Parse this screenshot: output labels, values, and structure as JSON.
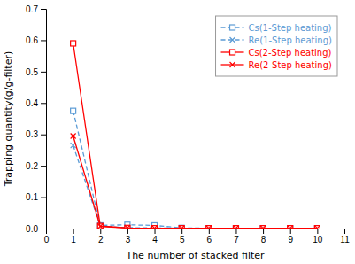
{
  "chart_data": {
    "type": "line",
    "x": [
      1,
      2,
      3,
      4,
      5,
      6,
      7,
      8,
      9,
      10
    ],
    "series": [
      {
        "name": "Cs(1-Step heating)",
        "color": "#5B9BD5",
        "marker": "square",
        "line_style": "dashed",
        "values": [
          0.375,
          0.01,
          0.012,
          0.01,
          0.002,
          0.001,
          0.001,
          0.001,
          0.001,
          0.001
        ]
      },
      {
        "name": "Re(1-Step heating)",
        "color": "#5B9BD5",
        "marker": "x",
        "line_style": "dashed",
        "values": [
          0.265,
          0.008,
          0.003,
          0.002,
          0.001,
          0.001,
          0.001,
          0.001,
          0.001,
          0.001
        ]
      },
      {
        "name": "Cs(2-Step heating)",
        "color": "#FF0000",
        "marker": "square",
        "line_style": "solid",
        "values": [
          0.59,
          0.008,
          0.002,
          0.001,
          0.001,
          0.001,
          0.001,
          0.001,
          0.001,
          0.001
        ]
      },
      {
        "name": "Re(2-Step heating)",
        "color": "#FF0000",
        "marker": "x",
        "line_style": "solid",
        "values": [
          0.295,
          0.007,
          0.002,
          0.001,
          0.001,
          0.001,
          0.001,
          0.001,
          0.001,
          0.001
        ]
      }
    ],
    "xlabel": "The number of stacked filter",
    "ylabel": "Trapping quantity(g/g-filter)",
    "xlim": [
      0,
      11
    ],
    "ylim": [
      0,
      0.7
    ],
    "xticks": [
      0,
      1,
      2,
      3,
      4,
      5,
      6,
      7,
      8,
      9,
      10,
      11
    ],
    "yticks": [
      {
        "value": 0.0,
        "label": "0.0"
      },
      0.1,
      0.2,
      0.3,
      0.4,
      0.5,
      0.6,
      0.7
    ],
    "legend": "upper right",
    "grid": false
  }
}
